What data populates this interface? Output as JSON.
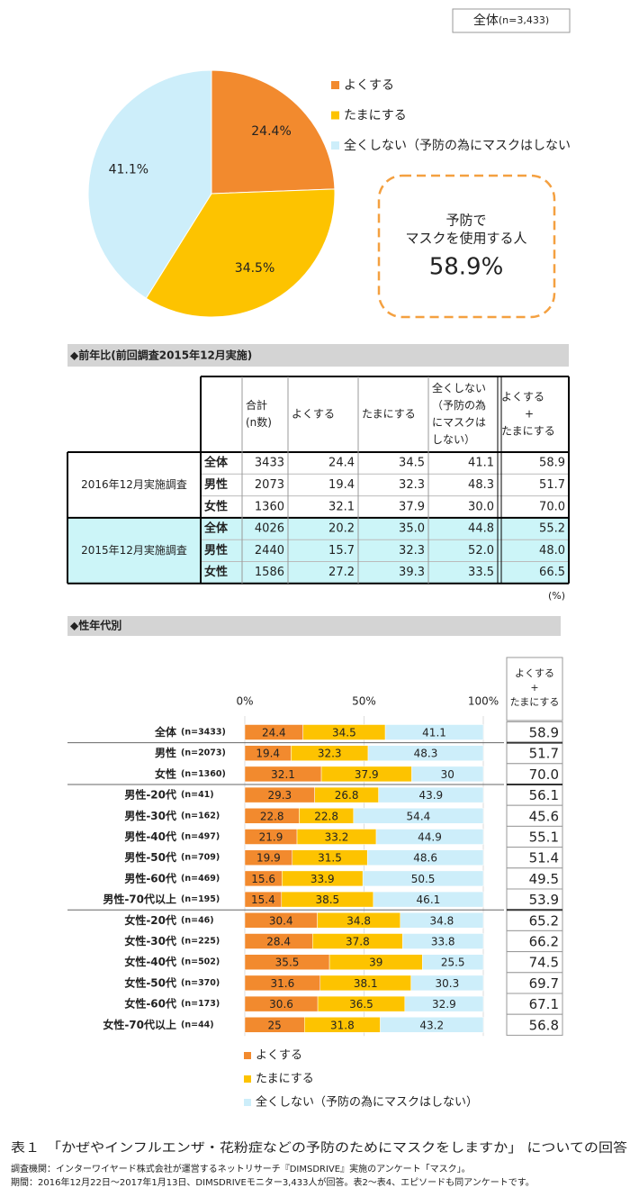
{
  "chart_data": [
    {
      "type": "pie",
      "title": "全体",
      "title_note": "(n=3,433)",
      "categories": [
        "よくする",
        "たまにする",
        "全くしない（予防の為にマスクはしない"
      ],
      "values": [
        24.4,
        34.5,
        41.1
      ],
      "value_labels": [
        "24.4%",
        "34.5%",
        "41.1%"
      ],
      "colors": [
        "#f28a2e",
        "#fdc300",
        "#cdeefa"
      ],
      "annotation": {
        "lines": [
          "予防で",
          "マスクを使用する人"
        ],
        "value_label": "58.9%"
      }
    },
    {
      "type": "stacked-barh",
      "title": "◆性年代別",
      "categories": [
        "全体",
        "男性",
        "女性",
        "男性-20代",
        "男性-30代",
        "男性-40代",
        "男性-50代",
        "男性-60代",
        "男性-70代以上",
        "女性-20代",
        "女性-30代",
        "女性-40代",
        "女性-50代",
        "女性-60代",
        "女性-70代以上"
      ],
      "category_notes": [
        "(n=3433)",
        "(n=2073)",
        "(n=1360)",
        "(n=41)",
        "(n=162)",
        "(n=497)",
        "(n=709)",
        "(n=469)",
        "(n=195)",
        "(n=46)",
        "(n=225)",
        "(n=502)",
        "(n=370)",
        "(n=173)",
        "(n=44)"
      ],
      "xlim": [
        0,
        100
      ],
      "xticks": [
        {
          "value": 0,
          "label": "0%"
        },
        {
          "value": 50,
          "label": "50%"
        },
        {
          "value": 100,
          "label": "100%"
        }
      ],
      "series": [
        {
          "name": "よくする",
          "color": "#f28a2e",
          "values": [
            24.4,
            19.4,
            32.1,
            29.3,
            22.8,
            21.9,
            19.9,
            15.6,
            15.4,
            30.4,
            28.4,
            35.5,
            31.6,
            30.6,
            25
          ]
        },
        {
          "name": "たまにする",
          "color": "#fdc300",
          "values": [
            34.5,
            32.3,
            37.9,
            26.8,
            22.8,
            33.2,
            31.5,
            33.9,
            38.5,
            34.8,
            37.8,
            39,
            38.1,
            36.5,
            31.8
          ]
        },
        {
          "name": "全くしない（予防の為にマスクはしない）",
          "color": "#cdeefa",
          "values": [
            41.1,
            48.3,
            30,
            43.9,
            54.4,
            44.9,
            48.6,
            50.5,
            46.1,
            34.8,
            33.8,
            25.5,
            30.3,
            32.9,
            43.2
          ]
        }
      ],
      "summary": {
        "header": [
          "よくする",
          "+",
          "たまにする"
        ],
        "rows": [
          "58.9",
          "51.7",
          "70.0",
          "56.1",
          "45.6",
          "55.1",
          "51.4",
          "49.5",
          "53.9",
          "65.2",
          "66.2",
          "74.5",
          "69.7",
          "67.1",
          "56.8"
        ]
      }
    }
  ],
  "table": {
    "title": "◆前年比(前回調査2015年12月実施)",
    "header": [
      [
        "合計",
        "(n数)"
      ],
      [
        "よくする"
      ],
      [
        "たまにする"
      ],
      [
        "全くしない",
        "（予防の為",
        "にマスクは",
        "しない）"
      ],
      [
        "よくする",
        "+",
        "たまにする"
      ]
    ],
    "groups": [
      {
        "label": "2016年12月実施調査",
        "rows": [
          [
            "全体",
            "3433",
            "24.4",
            "34.5",
            "41.1",
            "58.9"
          ],
          [
            "男性",
            "2073",
            "19.4",
            "32.3",
            "48.3",
            "51.7"
          ],
          [
            "女性",
            "1360",
            "32.1",
            "37.9",
            "30.0",
            "70.0"
          ]
        ]
      },
      {
        "label": "2015年12月実施調査",
        "rows": [
          [
            "全体",
            "4026",
            "20.2",
            "35.0",
            "44.8",
            "55.2"
          ],
          [
            "男性",
            "2440",
            "15.7",
            "32.3",
            "52.0",
            "48.0"
          ],
          [
            "女性",
            "1586",
            "27.2",
            "39.3",
            "33.5",
            "66.5"
          ]
        ]
      }
    ],
    "unit": "(%)"
  },
  "caption": {
    "title": "表１　「かぜやインフルエンザ・花粉症などの予防のためにマスクをしますか」 についての回答",
    "notes": [
      "調査機関：インターワイヤード株式会社が運営するネットリサーチ『DIMSDRIVE』実施のアンケート「マスク」。",
      "期間：2016年12月22日～2017年1月13日、DIMSDRIVEモニター3,433人が回答。表2～表4、エピソードも同アンケートです。"
    ]
  }
}
